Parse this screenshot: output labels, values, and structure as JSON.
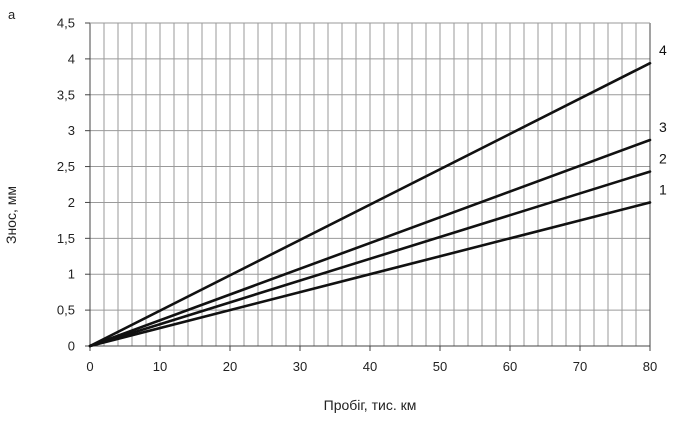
{
  "panel_label": "а",
  "chart_data": {
    "type": "line",
    "title": "",
    "xlabel": "Пробіг, тис. км",
    "ylabel": "Знос, мм",
    "xlim": [
      0,
      80
    ],
    "ylim": [
      0,
      4.5
    ],
    "x_ticks": [
      0,
      10,
      20,
      30,
      40,
      50,
      60,
      70,
      80
    ],
    "x_tick_labels": [
      "0",
      "10",
      "20",
      "30",
      "40",
      "50",
      "60",
      "70",
      "80"
    ],
    "y_ticks": [
      0,
      0.5,
      1,
      1.5,
      2,
      2.5,
      3,
      3.5,
      4,
      4.5
    ],
    "y_tick_labels": [
      "0",
      "0,5",
      "1",
      "1,5",
      "2",
      "2,5",
      "3",
      "3,5",
      "4",
      "4,5"
    ],
    "grid": {
      "vertical_step": 2,
      "horizontal_step": 0.5
    },
    "legend": "none",
    "series": [
      {
        "name": "1",
        "x": [
          0,
          80
        ],
        "values": [
          0,
          2.0
        ],
        "color": "#111111"
      },
      {
        "name": "2",
        "x": [
          0,
          80
        ],
        "values": [
          0,
          2.43
        ],
        "color": "#111111"
      },
      {
        "name": "3",
        "x": [
          0,
          80
        ],
        "values": [
          0,
          2.87
        ],
        "color": "#111111"
      },
      {
        "name": "4",
        "x": [
          0,
          80
        ],
        "values": [
          0,
          3.94
        ],
        "color": "#111111"
      }
    ]
  }
}
